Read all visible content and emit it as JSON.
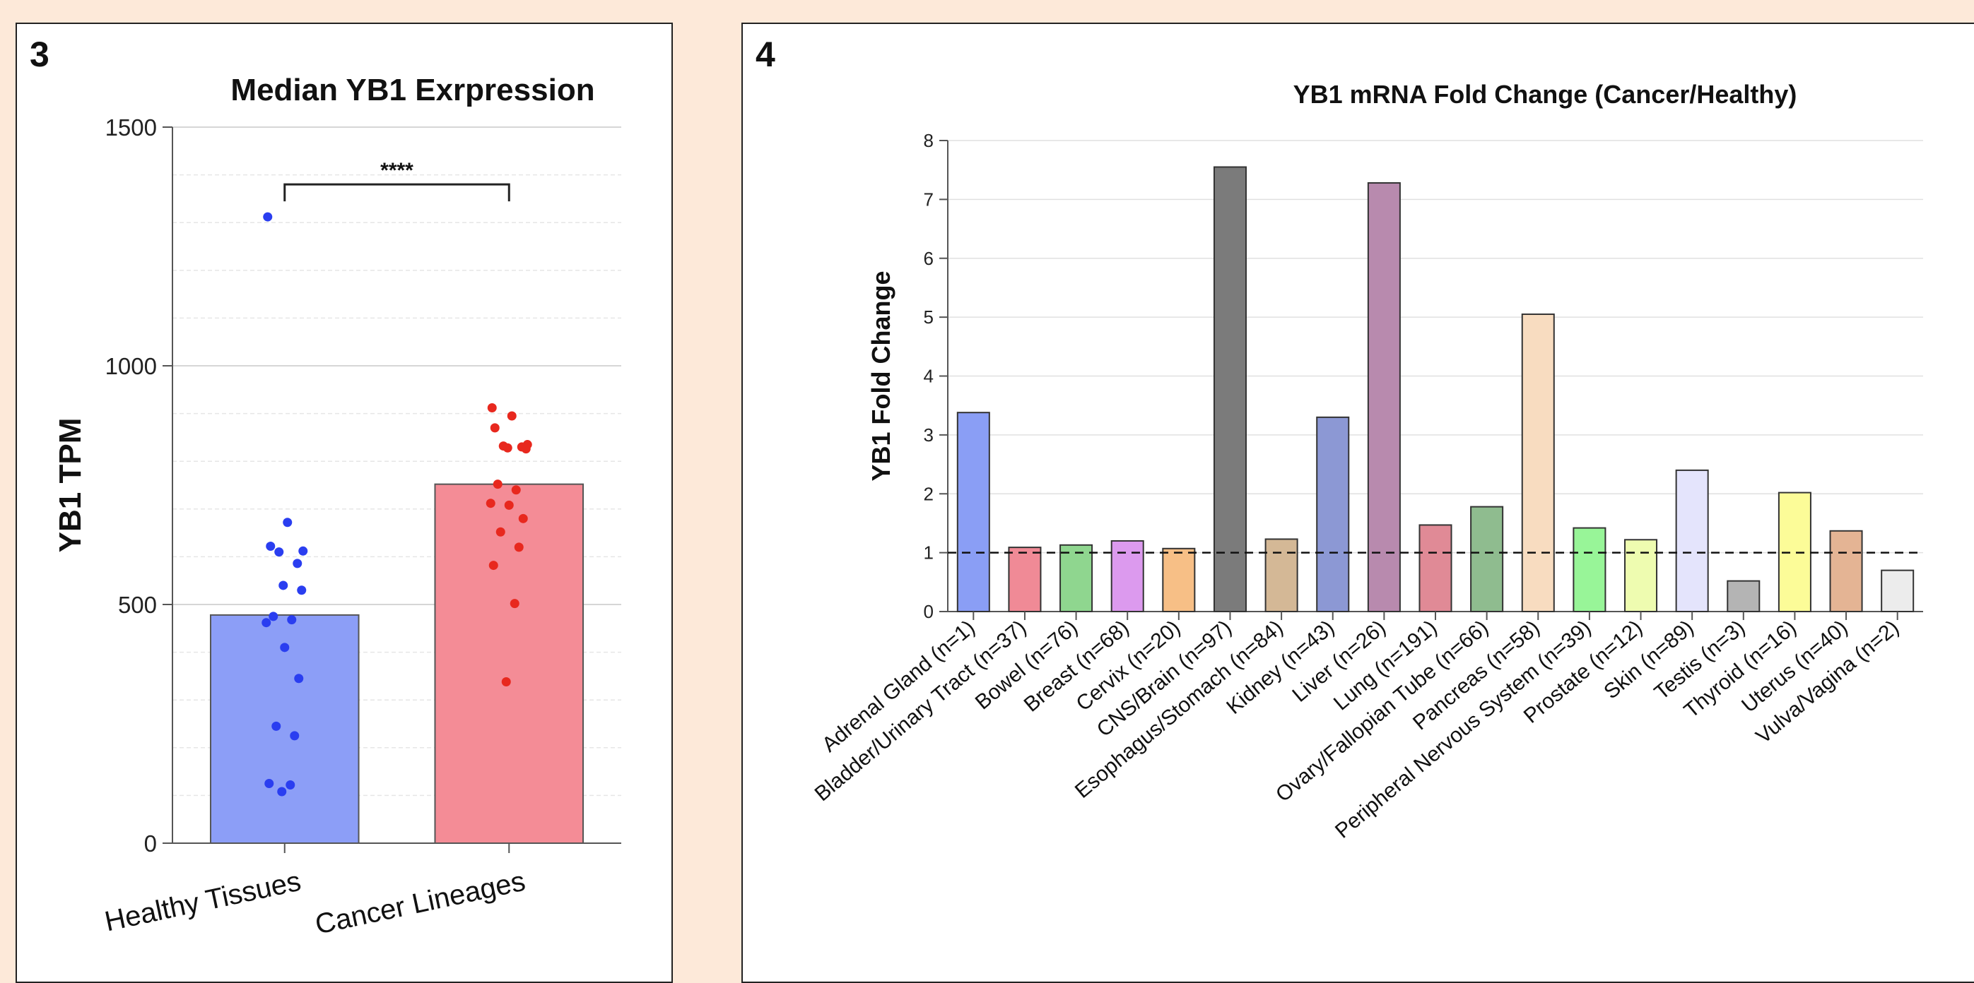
{
  "panels": [
    {
      "number": "3"
    },
    {
      "number": "4"
    }
  ],
  "chart_data": [
    {
      "type": "bar",
      "title": "Median YB1 Exrpression",
      "xlabel": "",
      "ylabel": "YB1 TPM",
      "ylim": [
        0,
        1500
      ],
      "yticks": [
        0,
        500,
        1000,
        1500
      ],
      "grid": true,
      "categories": [
        "Healthy Tissues",
        "Cancer Lineages"
      ],
      "values": [
        478,
        752
      ],
      "bar_colors": [
        "#8c9ef7",
        "#f48c96"
      ],
      "points": [
        {
          "category": "Healthy Tissues",
          "color": "#2a3ef0",
          "values": [
            1312,
            672,
            622,
            612,
            610,
            586,
            540,
            530,
            475,
            468,
            462,
            410,
            345,
            245,
            225,
            125,
            122,
            108
          ]
        },
        {
          "category": "Cancer Lineages",
          "color": "#e8281e",
          "values": [
            912,
            895,
            870,
            835,
            832,
            830,
            828,
            826,
            752,
            740,
            712,
            708,
            680,
            652,
            620,
            582,
            502,
            338
          ]
        }
      ],
      "annotation": {
        "text": "****",
        "between": [
          "Healthy Tissues",
          "Cancer Lineages"
        ],
        "y": 1380
      }
    },
    {
      "type": "bar",
      "title": "YB1 mRNA Fold Change (Cancer/Healthy)",
      "xlabel": "",
      "ylabel": "YB1 Fold Change",
      "ylim": [
        0,
        8
      ],
      "yticks": [
        0,
        1,
        2,
        3,
        4,
        5,
        6,
        7,
        8
      ],
      "grid": true,
      "reference_line": 1,
      "categories": [
        "Adrenal Gland (n=1)",
        "Bladder/Urinary Tract (n=37)",
        "Bowel (n=76)",
        "Breast (n=68)",
        "Cervix (n=20)",
        "CNS/Brain (n=97)",
        "Esophagus/Stomach (n=84)",
        "Kidney (n=43)",
        "Liver (n=26)",
        "Lung (n=191)",
        "Ovary/Fallopian Tube (n=66)",
        "Pancreas (n=58)",
        "Peripheral Nervous System (n=39)",
        "Prostate (n=12)",
        "Skin (n=89)",
        "Testis (n=3)",
        "Thyroid (n=16)",
        "Uterus (n=40)",
        "Vulva/Vagina (n=2)"
      ],
      "values": [
        3.38,
        1.09,
        1.13,
        1.2,
        1.07,
        7.55,
        1.23,
        3.3,
        7.28,
        1.47,
        1.78,
        5.05,
        1.42,
        1.22,
        2.4,
        0.52,
        2.02,
        1.37,
        0.7
      ],
      "bar_colors": [
        "#8a9ef5",
        "#f08a96",
        "#8fd68f",
        "#dc9aee",
        "#f7bf86",
        "#7b7b7b",
        "#d4b896",
        "#8c98d4",
        "#b88aae",
        "#e08a96",
        "#8fbc8f",
        "#f8dcc0",
        "#98f598",
        "#eefcb0",
        "#e4e4fc",
        "#b4b4b4",
        "#fcfc98",
        "#e4b494",
        "#ececec"
      ]
    }
  ]
}
